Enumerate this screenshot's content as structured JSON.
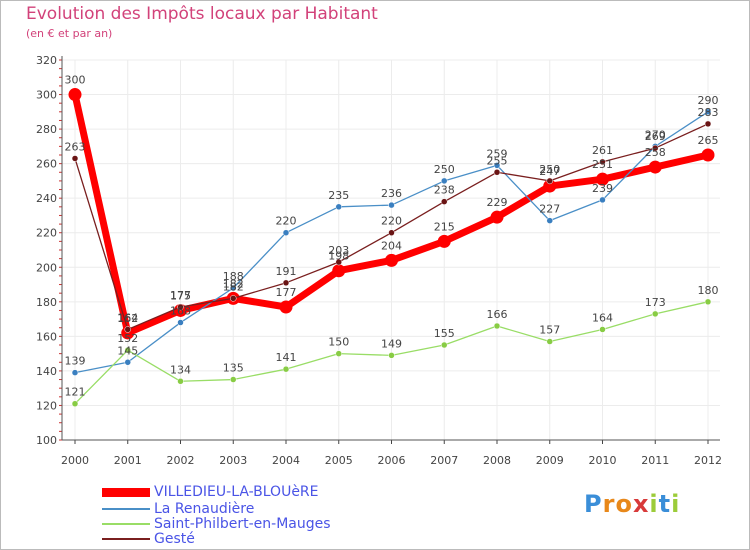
{
  "header": {
    "title": "Evolution des Impôts locaux par Habitant",
    "subtitle": "(en € et par an)"
  },
  "chart_data": {
    "type": "line",
    "title": "Evolution des Impôts locaux par Habitant",
    "subtitle": "(en € et par an)",
    "xlabel": "",
    "ylabel": "",
    "x": [
      2000,
      2001,
      2002,
      2003,
      2004,
      2005,
      2006,
      2007,
      2008,
      2009,
      2010,
      2011,
      2012
    ],
    "ylim": [
      100,
      320
    ],
    "yticks": [
      100,
      120,
      140,
      160,
      180,
      200,
      220,
      240,
      260,
      280,
      300,
      320
    ],
    "grid": true,
    "legend_position": "bottom-left",
    "series": [
      {
        "name": "VILLEDIEU-LA-BLOUèRE",
        "color": "#ff0000",
        "values": [
          300,
          162,
          175,
          182,
          177,
          198,
          204,
          215,
          229,
          247,
          251,
          258,
          265
        ]
      },
      {
        "name": "La Renaudière",
        "color": "#4a8fc7",
        "values": [
          139,
          145,
          168,
          188,
          220,
          235,
          236,
          250,
          259,
          227,
          239,
          270,
          290
        ]
      },
      {
        "name": "Saint-Philbert-en-Mauges",
        "color": "#99dd66",
        "values": [
          121,
          152,
          134,
          135,
          141,
          150,
          149,
          155,
          166,
          157,
          164,
          173,
          180
        ]
      },
      {
        "name": "Gesté",
        "color": "#7a1f1f",
        "values": [
          263,
          164,
          177,
          182,
          191,
          203,
          220,
          238,
          255,
          250,
          261,
          269,
          283
        ]
      }
    ]
  },
  "branding": {
    "logo_letters": [
      "P",
      "r",
      "o",
      "x",
      "i",
      "t",
      "i"
    ],
    "logo_colors": [
      "#3a8ed8",
      "#e8881a",
      "#e8881a",
      "#d83a3a",
      "#9ccc3a",
      "#3a8ed8",
      "#9ccc3a"
    ]
  }
}
